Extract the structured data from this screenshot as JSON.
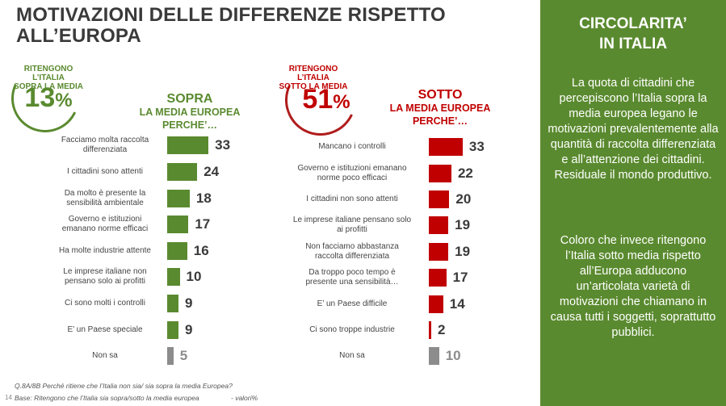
{
  "title": "MOTIVAZIONI DELLE DIFFERENZE RISPETTO\nALL’EUROPA",
  "colors": {
    "green": "#5a8a2f",
    "red": "#c00000",
    "grey": "#8c8c8c",
    "side_bg": "#5a8a2f"
  },
  "left_badge": {
    "label": "RITENGONO L’ITALIA\nSOPRA LA MEDIA",
    "value": "13",
    "unit": "%"
  },
  "right_badge": {
    "label": "RITENGONO L’ITALIA\nSOTTO LA MEDIA",
    "value": "51",
    "unit": "%"
  },
  "left_head": {
    "line1": "SOPRA",
    "line2": "LA MEDIA EUROPEA\nPERCHE’…"
  },
  "right_head": {
    "line1": "SOTTO",
    "line2": "LA MEDIA EUROPEA\nPERCHE’…"
  },
  "chart_data": [
    {
      "type": "bar",
      "orientation": "horizontal",
      "categories": [
        "Facciamo molta raccolta\ndifferenziata",
        "I cittadini sono attenti",
        "Da molto è presente la\nsensibilità ambientale",
        "Governo e istituzioni\nemanano norme efficaci",
        "Ha molte industrie attente",
        "Le imprese italiane non\npensano solo ai profitti",
        "Ci sono molti i controlli",
        "E’ un Paese speciale",
        "Non sa"
      ],
      "values": [
        33,
        24,
        18,
        17,
        16,
        10,
        9,
        9,
        5
      ],
      "bar_colors": [
        "green",
        "green",
        "green",
        "green",
        "green",
        "green",
        "green",
        "green",
        "grey"
      ]
    },
    {
      "type": "bar",
      "orientation": "horizontal",
      "categories": [
        "Mancano i controlli",
        "Governo e istituzioni emanano\nnorme poco efficaci",
        "I cittadini non sono attenti",
        "Le imprese italiane pensano solo\nai profitti",
        "Non facciamo abbastanza\nraccolta differenziata",
        "Da troppo poco tempo è\npresente una sensibilità…",
        "E’ un Paese difficile",
        "Ci sono troppe industrie",
        "Non sa"
      ],
      "values": [
        33,
        22,
        20,
        19,
        19,
        17,
        14,
        2,
        10
      ],
      "bar_colors": [
        "red",
        "red",
        "red",
        "red",
        "red",
        "red",
        "red",
        "red",
        "grey"
      ]
    }
  ],
  "footnote": {
    "question": "Q.8A/8B Perché ritiene che l’Italia non sia/ sia sopra la media Europea?",
    "base": "Base: Ritengono che l’Italia sia sopra/sotto la media europea",
    "unit": "- valori%",
    "page": "14"
  },
  "side_panel": {
    "title": "CIRCOLARITA’\nIN ITALIA",
    "p1": "La quota di cittadini che percepiscono l’Italia sopra la media europea legano le motivazioni prevalentemente alla quantità di raccolta differenziata e all’attenzione dei cittadini. Residuale il mondo produttivo.",
    "p2": "Coloro che invece ritengono l’Italia sotto media rispetto all’Europa adducono un’articolata varietà di motivazioni che chiamano in causa tutti i soggetti, soprattutto pubblici."
  }
}
